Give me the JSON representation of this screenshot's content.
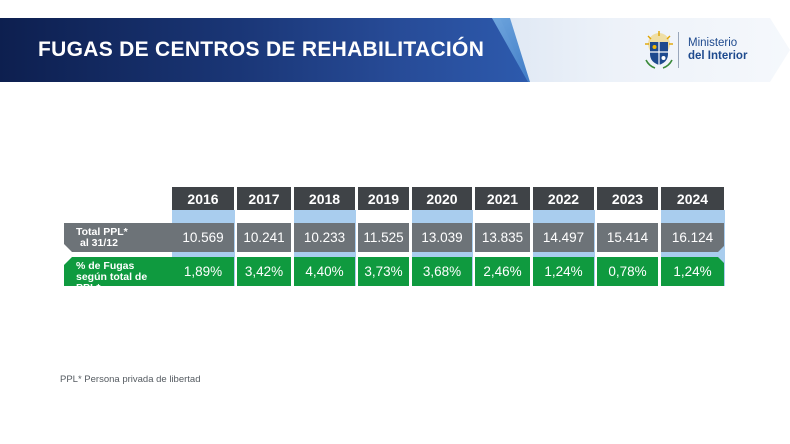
{
  "header": {
    "title": "FUGAS DE CENTROS DE REHABILITACIÓN",
    "logo": {
      "line1": "Ministerio",
      "line2": "del Interior",
      "icon": "uruguay-coat-of-arms-icon"
    }
  },
  "table": {
    "years": [
      "2016",
      "2017",
      "2018",
      "2019",
      "2020",
      "2021",
      "2022",
      "2023",
      "2024"
    ],
    "rows": [
      {
        "label_line1": "Total PPL*",
        "label_line2": "al 31/12",
        "values": [
          "10.569",
          "10.241",
          "10.233",
          "11.525",
          "13.039",
          "13.835",
          "14.497",
          "15.414",
          "16.124"
        ]
      },
      {
        "label_line1": "% de Fugas",
        "label_line2": "según total de PPL*",
        "values": [
          "1,89%",
          "3,42%",
          "4,40%",
          "3,73%",
          "3,68%",
          "2,46%",
          "1,24%",
          "0,78%",
          "1,24%"
        ]
      }
    ]
  },
  "footnote": "PPL* Persona privada de libertad",
  "colors": {
    "header_row": "#3f4347",
    "ppl_row": "#6d7378",
    "fugas_row": "#0f9a3f",
    "highlight_column": "#a9cdee",
    "banner": "#1a3676"
  }
}
